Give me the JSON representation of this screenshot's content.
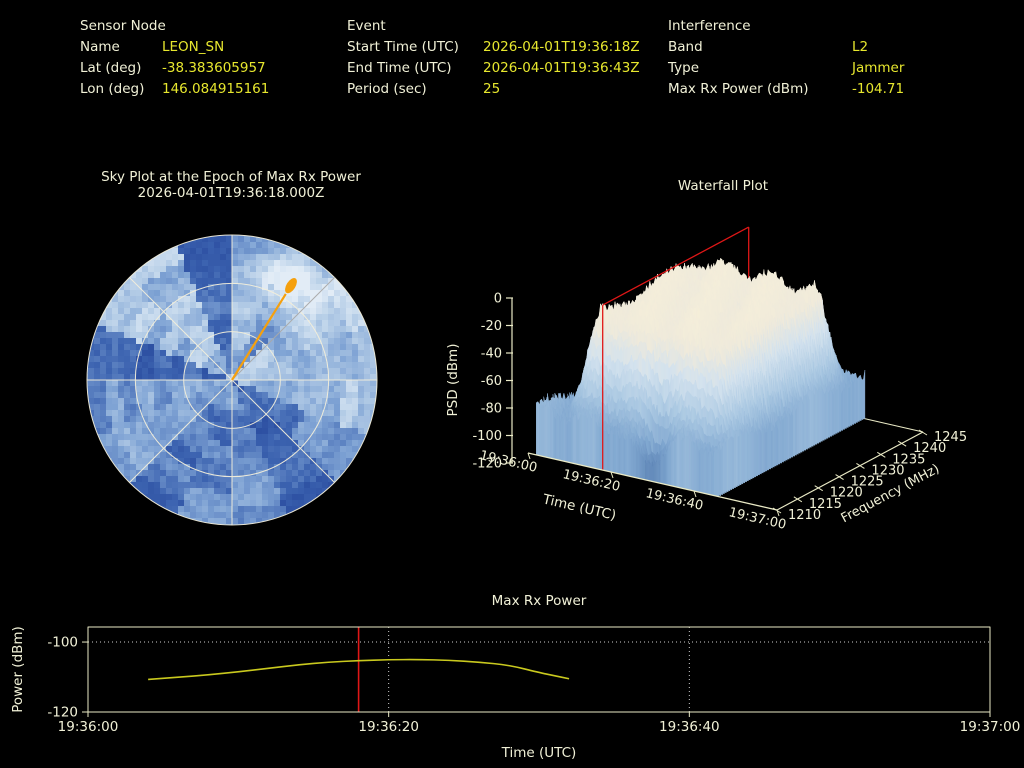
{
  "colors": {
    "background": "#000000",
    "text_cream": "#f1f1d7",
    "value_yellow": "#e7e72e",
    "spine": "#eaeac6",
    "grid_dotted": "#cfcfcf",
    "event_red": "#e01717",
    "curve_yellow": "#c9c91e",
    "orange": "#f5a00e",
    "sky_grid": "#f2eeda",
    "sky_grid_ne_spoke": "#a9a9a9"
  },
  "header": {
    "sensor_node": {
      "title": "Sensor Node",
      "rows": [
        {
          "label": "Name",
          "value": "LEON_SN"
        },
        {
          "label": "Lat (deg)",
          "value": "-38.383605957"
        },
        {
          "label": "Lon (deg)",
          "value": "146.084915161"
        }
      ]
    },
    "event": {
      "title": "Event",
      "rows": [
        {
          "label": "Start Time (UTC)",
          "value": "2026-04-01T19:36:18Z"
        },
        {
          "label": "End Time (UTC)",
          "value": "2026-04-01T19:36:43Z"
        },
        {
          "label": "Period (sec)",
          "value": "25"
        }
      ]
    },
    "interference": {
      "title": "Interference",
      "rows": [
        {
          "label": "Band",
          "value": "L2"
        },
        {
          "label": "Type",
          "value": "Jammer"
        },
        {
          "label": "Max Rx Power (dBm)",
          "value": "-104.71"
        }
      ]
    }
  },
  "chart_data": [
    {
      "type": "heatmap",
      "subtype": "polar-sky-plot",
      "title_line1": "Sky Plot at the Epoch of Max Rx Power",
      "title_line2": "2026-04-01T19:36:18.000Z",
      "colormap": "blues (dark=low, light=high)",
      "interferer_azimuth_deg": 32,
      "interferer_elevation_deg": 23,
      "interferer_radius_fraction": 0.74,
      "ring_fractions": [
        0.3333,
        0.6667,
        1.0
      ],
      "spoke_step_deg": 45,
      "azimuth_sectors": 16,
      "radial_bins": 9,
      "seed": 7
    },
    {
      "type": "heatmap",
      "subtype": "3d-waterfall-surface",
      "title": "Waterfall Plot",
      "zlabel": "PSD (dBm)",
      "xlabel": "Time (UTC)",
      "flabel": "Frequency (MHz)",
      "psd_ticks": [
        0,
        -20,
        -40,
        -60,
        -80,
        -100,
        -120
      ],
      "time_ticks": [
        {
          "sec": 0,
          "label": "19:36:00"
        },
        {
          "sec": 20,
          "label": "19:36:20"
        },
        {
          "sec": 40,
          "label": "19:36:40"
        },
        {
          "sec": 60,
          "label": "19:37:00"
        }
      ],
      "freq_ticks": [
        {
          "mhz": 1210,
          "label": "1210"
        },
        {
          "mhz": 1215,
          "label": "1215"
        },
        {
          "mhz": 1220,
          "label": "1220"
        },
        {
          "mhz": 1225,
          "label": "1225"
        },
        {
          "mhz": 1230,
          "label": "1230"
        },
        {
          "mhz": 1235,
          "label": "1235"
        },
        {
          "mhz": 1240,
          "label": "1240"
        },
        {
          "mhz": 1245,
          "label": "1245"
        }
      ],
      "time_range_sec": [
        0,
        60
      ],
      "freq_range_mhz": [
        1210,
        1245
      ],
      "psd_range_dbm": [
        -120,
        0
      ],
      "surface_time_extent_sec": [
        2,
        46
      ],
      "plateau_psd_dbm": -20,
      "noise_floor_psd_dbm": -87,
      "plateau_time_sec": [
        6,
        45
      ],
      "plateau_freq_mhz": [
        1212,
        1243
      ],
      "slice_plane_time_sec": 18,
      "seed": 11
    },
    {
      "type": "line",
      "title": "Max Rx Power",
      "ylabel": "Power (dBm)",
      "xlabel": "Time (UTC)",
      "ylim": [
        -120,
        -95.7
      ],
      "xlim_sec": [
        0,
        60
      ],
      "y_ticks": [
        {
          "v": -100,
          "label": "-100"
        },
        {
          "v": -120,
          "label": "-120"
        }
      ],
      "x_ticks": [
        {
          "sec": 0,
          "label": "19:36:00"
        },
        {
          "sec": 20,
          "label": "19:36:20"
        },
        {
          "sec": 40,
          "label": "19:36:40"
        },
        {
          "sec": 60,
          "label": "19:37:00"
        }
      ],
      "h_gridlines": [
        -100
      ],
      "v_gridlines_sec": [
        20,
        40
      ],
      "event_epoch_line_sec": 18,
      "points": [
        [
          4,
          -110.7
        ],
        [
          6,
          -110.05
        ],
        [
          8,
          -109.4
        ],
        [
          10,
          -108.5
        ],
        [
          12,
          -107.5
        ],
        [
          14,
          -106.5
        ],
        [
          16,
          -105.75
        ],
        [
          18,
          -105.3
        ],
        [
          20,
          -105.05
        ],
        [
          22,
          -105.0
        ],
        [
          24,
          -105.2
        ],
        [
          26,
          -105.75
        ],
        [
          28,
          -106.6
        ],
        [
          30,
          -108.7
        ],
        [
          31,
          -109.6
        ],
        [
          32,
          -110.5
        ]
      ]
    }
  ]
}
